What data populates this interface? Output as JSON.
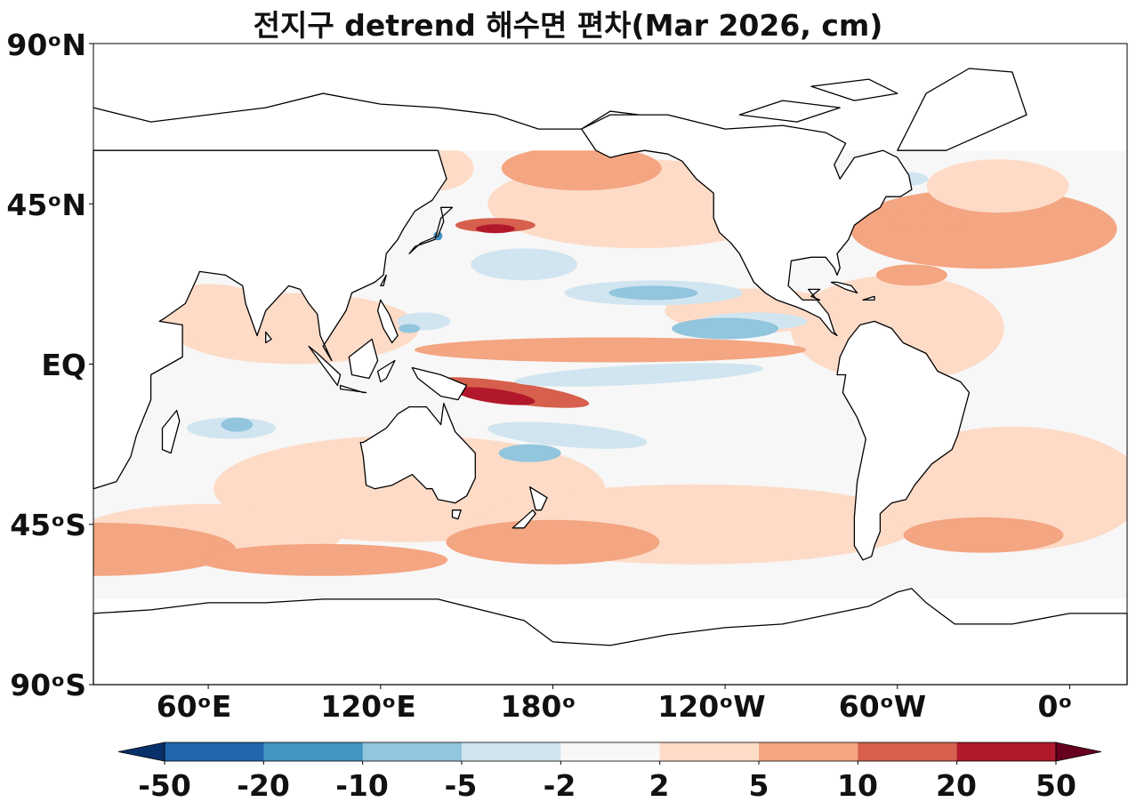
{
  "title": "전지구 detrend 해수면 편차(Mar 2026, cm)",
  "axes": {
    "lat_ticks": [
      "90ᵒN",
      "45ᵒN",
      "EQ",
      "45ᵒS",
      "90ᵒS"
    ],
    "lon_ticks": [
      "60ᵒE",
      "120ᵒE",
      "180ᵒ",
      "120ᵒW",
      "60ᵒW",
      "0ᵒ"
    ]
  },
  "colorbar": {
    "ticks": [
      "-50",
      "-20",
      "-10",
      "-5",
      "-2",
      "2",
      "5",
      "10",
      "20",
      "50"
    ],
    "colors": [
      "#08306b",
      "#2166ac",
      "#4393c3",
      "#92c5de",
      "#d1e5f0",
      "#f7f7f7",
      "#fddbc7",
      "#f4a582",
      "#d6604d",
      "#b2182b",
      "#67001f"
    ]
  },
  "chart_data": {
    "type": "heatmap",
    "title": "전지구 detrend 해수면 편차(Mar 2026, cm)",
    "projection": "PlateCarree, central longitude 180",
    "lon_range": [
      20,
      380
    ],
    "lat_range": [
      -90,
      90
    ],
    "data_lat_range": [
      -66,
      60
    ],
    "levels": [
      -50,
      -20,
      -10,
      -5,
      -2,
      2,
      5,
      10,
      20,
      50
    ],
    "extend": "both",
    "colormap": "RdBu_r",
    "units": "cm"
  }
}
